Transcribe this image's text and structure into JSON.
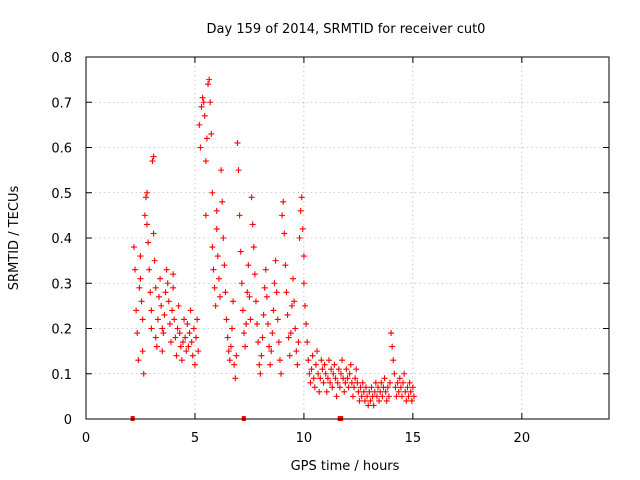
{
  "chart_data": {
    "type": "scatter",
    "title": "Day 159 of 2014, SRMTID for receiver cut0",
    "xlabel": "GPS time / hours",
    "ylabel": "SRMTID / TECUs",
    "xlim": [
      0,
      24
    ],
    "ylim": [
      0,
      0.8
    ],
    "xticks": [
      "0",
      "5",
      "10",
      "15",
      "20"
    ],
    "yticks": [
      "0",
      "0.1",
      "0.2",
      "0.3",
      "0.4",
      "0.5",
      "0.6",
      "0.7",
      "0.8"
    ],
    "grid": true,
    "legend": "none",
    "marker": "+",
    "color": "#ff0000",
    "series": [
      {
        "name": "SRMTID",
        "points": [
          [
            2.2,
            0.38
          ],
          [
            2.25,
            0.33
          ],
          [
            2.3,
            0.24
          ],
          [
            2.35,
            0.19
          ],
          [
            2.4,
            0.13
          ],
          [
            2.45,
            0.29
          ],
          [
            2.5,
            0.36
          ],
          [
            2.5,
            0.31
          ],
          [
            2.55,
            0.26
          ],
          [
            2.6,
            0.22
          ],
          [
            2.6,
            0.15
          ],
          [
            2.65,
            0.1
          ],
          [
            2.7,
            0.45
          ],
          [
            2.75,
            0.49
          ],
          [
            2.8,
            0.5
          ],
          [
            2.8,
            0.43
          ],
          [
            2.85,
            0.39
          ],
          [
            2.9,
            0.33
          ],
          [
            2.95,
            0.28
          ],
          [
            3.0,
            0.24
          ],
          [
            3.0,
            0.2
          ],
          [
            3.05,
            0.57
          ],
          [
            3.1,
            0.58
          ],
          [
            3.1,
            0.41
          ],
          [
            3.15,
            0.35
          ],
          [
            3.2,
            0.29
          ],
          [
            3.2,
            0.18
          ],
          [
            3.25,
            0.16
          ],
          [
            3.3,
            0.22
          ],
          [
            3.35,
            0.27
          ],
          [
            3.4,
            0.31
          ],
          [
            3.45,
            0.25
          ],
          [
            3.5,
            0.2
          ],
          [
            3.5,
            0.15
          ],
          [
            3.55,
            0.19
          ],
          [
            3.6,
            0.23
          ],
          [
            3.65,
            0.28
          ],
          [
            3.7,
            0.33
          ],
          [
            3.75,
            0.3
          ],
          [
            3.8,
            0.26
          ],
          [
            3.85,
            0.21
          ],
          [
            3.9,
            0.17
          ],
          [
            3.95,
            0.24
          ],
          [
            4.0,
            0.32
          ],
          [
            4.0,
            0.29
          ],
          [
            4.05,
            0.22
          ],
          [
            4.1,
            0.18
          ],
          [
            4.15,
            0.14
          ],
          [
            4.2,
            0.2
          ],
          [
            4.25,
            0.25
          ],
          [
            4.3,
            0.19
          ],
          [
            4.35,
            0.16
          ],
          [
            4.4,
            0.13
          ],
          [
            4.45,
            0.17
          ],
          [
            4.5,
            0.22
          ],
          [
            4.55,
            0.18
          ],
          [
            4.6,
            0.15
          ],
          [
            4.65,
            0.21
          ],
          [
            4.7,
            0.16
          ],
          [
            4.75,
            0.19
          ],
          [
            4.8,
            0.24
          ],
          [
            4.85,
            0.17
          ],
          [
            4.9,
            0.14
          ],
          [
            4.95,
            0.2
          ],
          [
            5.0,
            0.12
          ],
          [
            5.05,
            0.18
          ],
          [
            5.1,
            0.22
          ],
          [
            5.15,
            0.15
          ],
          [
            5.2,
            0.65
          ],
          [
            5.25,
            0.6
          ],
          [
            5.3,
            0.69
          ],
          [
            5.35,
            0.71
          ],
          [
            5.4,
            0.7
          ],
          [
            5.45,
            0.67
          ],
          [
            5.5,
            0.57
          ],
          [
            5.5,
            0.45
          ],
          [
            5.55,
            0.62
          ],
          [
            5.6,
            0.74
          ],
          [
            5.65,
            0.75
          ],
          [
            5.7,
            0.7
          ],
          [
            5.75,
            0.63
          ],
          [
            5.8,
            0.5
          ],
          [
            5.8,
            0.38
          ],
          [
            5.85,
            0.33
          ],
          [
            5.9,
            0.29
          ],
          [
            5.95,
            0.25
          ],
          [
            6.0,
            0.46
          ],
          [
            6.0,
            0.42
          ],
          [
            6.05,
            0.36
          ],
          [
            6.1,
            0.31
          ],
          [
            6.15,
            0.27
          ],
          [
            6.2,
            0.55
          ],
          [
            6.25,
            0.48
          ],
          [
            6.3,
            0.4
          ],
          [
            6.35,
            0.34
          ],
          [
            6.4,
            0.28
          ],
          [
            6.45,
            0.22
          ],
          [
            6.5,
            0.18
          ],
          [
            6.55,
            0.15
          ],
          [
            6.6,
            0.13
          ],
          [
            6.65,
            0.16
          ],
          [
            6.7,
            0.2
          ],
          [
            6.75,
            0.26
          ],
          [
            6.8,
            0.12
          ],
          [
            6.85,
            0.09
          ],
          [
            6.9,
            0.14
          ],
          [
            6.95,
            0.61
          ],
          [
            7.0,
            0.55
          ],
          [
            7.05,
            0.45
          ],
          [
            7.1,
            0.37
          ],
          [
            7.15,
            0.3
          ],
          [
            7.2,
            0.24
          ],
          [
            7.25,
            0.19
          ],
          [
            7.3,
            0.16
          ],
          [
            7.35,
            0.21
          ],
          [
            7.4,
            0.28
          ],
          [
            7.45,
            0.34
          ],
          [
            7.5,
            0.27
          ],
          [
            7.55,
            0.22
          ],
          [
            7.6,
            0.49
          ],
          [
            7.65,
            0.43
          ],
          [
            7.7,
            0.38
          ],
          [
            7.75,
            0.32
          ],
          [
            7.8,
            0.26
          ],
          [
            7.85,
            0.21
          ],
          [
            7.9,
            0.17
          ],
          [
            7.95,
            0.12
          ],
          [
            8.0,
            0.1
          ],
          [
            8.05,
            0.14
          ],
          [
            8.1,
            0.18
          ],
          [
            8.15,
            0.23
          ],
          [
            8.2,
            0.29
          ],
          [
            8.25,
            0.33
          ],
          [
            8.3,
            0.27
          ],
          [
            8.35,
            0.21
          ],
          [
            8.4,
            0.16
          ],
          [
            8.45,
            0.12
          ],
          [
            8.5,
            0.15
          ],
          [
            8.55,
            0.19
          ],
          [
            8.6,
            0.24
          ],
          [
            8.65,
            0.3
          ],
          [
            8.7,
            0.35
          ],
          [
            8.75,
            0.28
          ],
          [
            8.8,
            0.22
          ],
          [
            8.85,
            0.17
          ],
          [
            8.9,
            0.13
          ],
          [
            8.95,
            0.1
          ],
          [
            9.0,
            0.45
          ],
          [
            9.05,
            0.48
          ],
          [
            9.1,
            0.41
          ],
          [
            9.15,
            0.34
          ],
          [
            9.2,
            0.28
          ],
          [
            9.25,
            0.23
          ],
          [
            9.3,
            0.18
          ],
          [
            9.35,
            0.14
          ],
          [
            9.4,
            0.19
          ],
          [
            9.45,
            0.25
          ],
          [
            9.5,
            0.31
          ],
          [
            9.55,
            0.26
          ],
          [
            9.6,
            0.2
          ],
          [
            9.65,
            0.15
          ],
          [
            9.7,
            0.12
          ],
          [
            9.75,
            0.17
          ],
          [
            9.8,
            0.4
          ],
          [
            9.85,
            0.46
          ],
          [
            9.9,
            0.49
          ],
          [
            9.95,
            0.42
          ],
          [
            10.0,
            0.36
          ],
          [
            10.0,
            0.3
          ],
          [
            10.05,
            0.25
          ],
          [
            10.1,
            0.21
          ],
          [
            10.15,
            0.17
          ],
          [
            10.2,
            0.13
          ],
          [
            10.25,
            0.1
          ],
          [
            10.3,
            0.08
          ],
          [
            10.35,
            0.11
          ],
          [
            10.4,
            0.14
          ],
          [
            10.45,
            0.09
          ],
          [
            10.5,
            0.07
          ],
          [
            10.55,
            0.12
          ],
          [
            10.6,
            0.15
          ],
          [
            10.65,
            0.1
          ],
          [
            10.7,
            0.06
          ],
          [
            10.75,
            0.09
          ],
          [
            10.8,
            0.13
          ],
          [
            10.85,
            0.11
          ],
          [
            10.9,
            0.08
          ],
          [
            10.95,
            0.12
          ],
          [
            11.0,
            0.1
          ],
          [
            11.05,
            0.06
          ],
          [
            11.1,
            0.09
          ],
          [
            11.15,
            0.13
          ],
          [
            11.2,
            0.08
          ],
          [
            11.25,
            0.11
          ],
          [
            11.3,
            0.07
          ],
          [
            11.35,
            0.1
          ],
          [
            11.4,
            0.12
          ],
          [
            11.45,
            0.09
          ],
          [
            11.5,
            0.05
          ],
          [
            11.55,
            0.08
          ],
          [
            11.6,
            0.11
          ],
          [
            11.65,
            0.07
          ],
          [
            11.7,
            0.1
          ],
          [
            11.75,
            0.13
          ],
          [
            11.8,
            0.09
          ],
          [
            11.85,
            0.06
          ],
          [
            11.9,
            0.08
          ],
          [
            11.95,
            0.11
          ],
          [
            12.0,
            0.09
          ],
          [
            12.05,
            0.07
          ],
          [
            12.1,
            0.1
          ],
          [
            12.15,
            0.12
          ],
          [
            12.2,
            0.08
          ],
          [
            12.25,
            0.05
          ],
          [
            12.3,
            0.07
          ],
          [
            12.35,
            0.09
          ],
          [
            12.4,
            0.11
          ],
          [
            12.45,
            0.08
          ],
          [
            12.5,
            0.06
          ],
          [
            12.55,
            0.04
          ],
          [
            12.6,
            0.07
          ],
          [
            12.65,
            0.05
          ],
          [
            12.7,
            0.08
          ],
          [
            12.75,
            0.06
          ],
          [
            12.8,
            0.04
          ],
          [
            12.85,
            0.07
          ],
          [
            12.9,
            0.05
          ],
          [
            12.95,
            0.03
          ],
          [
            13.0,
            0.06
          ],
          [
            13.05,
            0.04
          ],
          [
            13.1,
            0.07
          ],
          [
            13.15,
            0.05
          ],
          [
            13.2,
            0.03
          ],
          [
            13.25,
            0.06
          ],
          [
            13.3,
            0.08
          ],
          [
            13.35,
            0.05
          ],
          [
            13.4,
            0.07
          ],
          [
            13.45,
            0.04
          ],
          [
            13.5,
            0.06
          ],
          [
            13.55,
            0.08
          ],
          [
            13.6,
            0.05
          ],
          [
            13.65,
            0.07
          ],
          [
            13.7,
            0.09
          ],
          [
            13.75,
            0.06
          ],
          [
            13.8,
            0.04
          ],
          [
            13.85,
            0.07
          ],
          [
            13.9,
            0.05
          ],
          [
            13.95,
            0.08
          ],
          [
            14.0,
            0.19
          ],
          [
            14.05,
            0.16
          ],
          [
            14.1,
            0.13
          ],
          [
            14.15,
            0.1
          ],
          [
            14.2,
            0.07
          ],
          [
            14.25,
            0.05
          ],
          [
            14.3,
            0.08
          ],
          [
            14.35,
            0.06
          ],
          [
            14.4,
            0.09
          ],
          [
            14.45,
            0.07
          ],
          [
            14.5,
            0.05
          ],
          [
            14.55,
            0.08
          ],
          [
            14.6,
            0.1
          ],
          [
            14.65,
            0.06
          ],
          [
            14.7,
            0.04
          ],
          [
            14.75,
            0.07
          ],
          [
            14.8,
            0.05
          ],
          [
            14.85,
            0.08
          ],
          [
            14.9,
            0.06
          ],
          [
            14.95,
            0.04
          ],
          [
            15.0,
            0.07
          ],
          [
            15.05,
            0.05
          ]
        ]
      }
    ],
    "gap_markers": [
      {
        "x_start": 2.05,
        "x_end": 2.2
      },
      {
        "x_start": 7.15,
        "x_end": 7.3
      },
      {
        "x_start": 11.55,
        "x_end": 11.8
      }
    ]
  }
}
